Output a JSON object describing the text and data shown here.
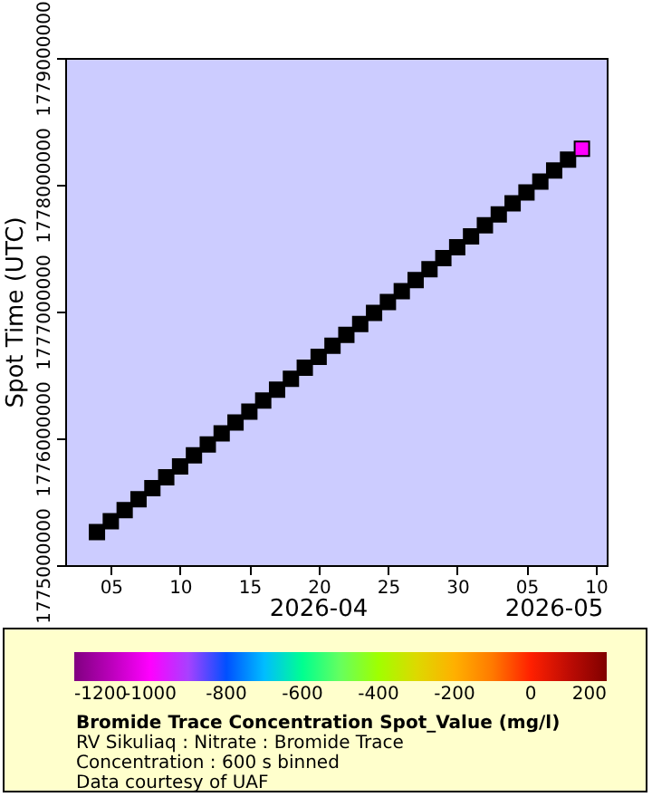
{
  "chart_data": {
    "type": "scatter",
    "ylabel": "Spot Time (UTC)",
    "clabel": "Bromide Trace Concentration Spot_Value (mg/l)",
    "annotations": [
      "2026-04",
      "2026-05",
      "RV Sikuliaq : Nitrate : Bromide Trace",
      "Concentration : 600 s binned",
      "Data courtesy of UAF"
    ],
    "xlim": [
      "2026-04-01T17:00",
      "2026-05-10T19:00"
    ],
    "xticks": [
      {
        "value": "2026-04-05",
        "label": "05"
      },
      {
        "value": "2026-04-10",
        "label": "10"
      },
      {
        "value": "2026-04-15",
        "label": "15"
      },
      {
        "value": "2026-04-20",
        "label": "20"
      },
      {
        "value": "2026-04-25",
        "label": "25"
      },
      {
        "value": "2026-04-30",
        "label": "30"
      },
      {
        "value": "2026-05-05",
        "label": "05"
      },
      {
        "value": "2026-05-10",
        "label": "10"
      }
    ],
    "ylim": [
      1775000000,
      1779000000
    ],
    "yticks": [
      1775000000,
      1776000000,
      1777000000,
      1778000000,
      1779000000
    ],
    "marker": "square",
    "grid": false,
    "clim": [
      -1200,
      200
    ],
    "cticks": [
      -1200,
      -1000,
      -800,
      -600,
      -400,
      -200,
      0,
      200
    ],
    "series": [
      {
        "color": "#000000",
        "x": [
          "2026-04-04",
          "2026-04-05",
          "2026-04-06",
          "2026-04-07",
          "2026-04-08",
          "2026-04-09",
          "2026-04-10",
          "2026-04-11",
          "2026-04-12",
          "2026-04-13",
          "2026-04-14",
          "2026-04-15",
          "2026-04-16",
          "2026-04-17",
          "2026-04-18",
          "2026-04-19",
          "2026-04-20",
          "2026-04-21",
          "2026-04-22",
          "2026-04-23",
          "2026-04-24",
          "2026-04-25",
          "2026-04-26",
          "2026-04-27",
          "2026-04-28",
          "2026-04-29",
          "2026-04-30",
          "2026-05-01",
          "2026-05-02",
          "2026-05-03",
          "2026-05-04",
          "2026-05-05",
          "2026-05-06",
          "2026-05-07",
          "2026-05-08"
        ],
        "values": [
          1775260800,
          1775347200,
          1775433600,
          1775520000,
          1775606400,
          1775692800,
          1775779200,
          1775865600,
          1775952000,
          1776038400,
          1776124800,
          1776211200,
          1776297600,
          1776384000,
          1776470400,
          1776556800,
          1776643200,
          1776729600,
          1776816000,
          1776902400,
          1776988800,
          1777075200,
          1777161600,
          1777248000,
          1777334400,
          1777420800,
          1777507200,
          1777593600,
          1777680000,
          1777766400,
          1777852800,
          1777939200,
          1778025600,
          1778112000,
          1778198400
        ]
      },
      {
        "x": [
          "2026-05-09"
        ],
        "values": [
          1778284800
        ],
        "cvalues": [
          -1000
        ]
      }
    ]
  }
}
